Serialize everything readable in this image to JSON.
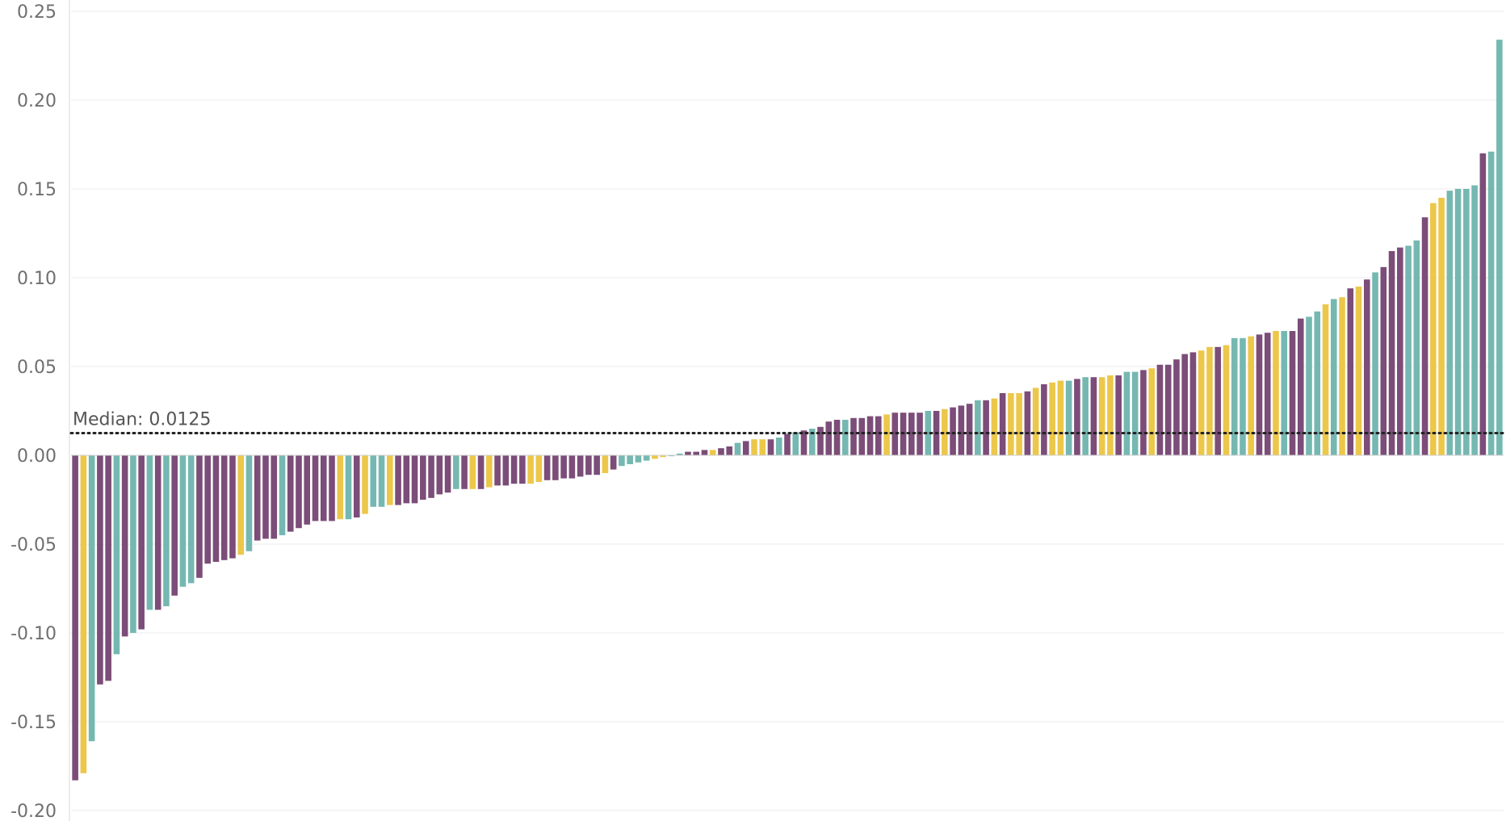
{
  "colors": {
    "purple": "#7b4d78",
    "yellow": "#ecc74a",
    "teal": "#75b8b1",
    "grid": "#ebebeb",
    "axis": "#d9d9d9",
    "median_line": "#222222"
  },
  "chart_data": {
    "type": "bar",
    "title": "",
    "xlabel": "",
    "ylabel": "",
    "ylim": [
      -0.2,
      0.25
    ],
    "y_ticks": [
      "0.25",
      "0.20",
      "0.15",
      "0.10",
      "0.05",
      "0.00",
      "-0.05",
      "-0.10",
      "-0.15",
      "-0.20"
    ],
    "grid": true,
    "reference_line": {
      "value": 0.0125,
      "label": "Median: 0.0125",
      "style": "dotted"
    },
    "bars": [
      {
        "value": -0.183,
        "color": "purple"
      },
      {
        "value": -0.179,
        "color": "yellow"
      },
      {
        "value": -0.161,
        "color": "teal"
      },
      {
        "value": -0.129,
        "color": "purple"
      },
      {
        "value": -0.127,
        "color": "purple"
      },
      {
        "value": -0.112,
        "color": "teal"
      },
      {
        "value": -0.102,
        "color": "purple"
      },
      {
        "value": -0.1,
        "color": "teal"
      },
      {
        "value": -0.098,
        "color": "purple"
      },
      {
        "value": -0.087,
        "color": "teal"
      },
      {
        "value": -0.087,
        "color": "purple"
      },
      {
        "value": -0.085,
        "color": "teal"
      },
      {
        "value": -0.079,
        "color": "purple"
      },
      {
        "value": -0.074,
        "color": "teal"
      },
      {
        "value": -0.072,
        "color": "teal"
      },
      {
        "value": -0.069,
        "color": "purple"
      },
      {
        "value": -0.061,
        "color": "purple"
      },
      {
        "value": -0.06,
        "color": "purple"
      },
      {
        "value": -0.059,
        "color": "purple"
      },
      {
        "value": -0.058,
        "color": "purple"
      },
      {
        "value": -0.056,
        "color": "yellow"
      },
      {
        "value": -0.054,
        "color": "teal"
      },
      {
        "value": -0.048,
        "color": "purple"
      },
      {
        "value": -0.047,
        "color": "purple"
      },
      {
        "value": -0.047,
        "color": "purple"
      },
      {
        "value": -0.045,
        "color": "teal"
      },
      {
        "value": -0.043,
        "color": "purple"
      },
      {
        "value": -0.041,
        "color": "purple"
      },
      {
        "value": -0.039,
        "color": "purple"
      },
      {
        "value": -0.037,
        "color": "purple"
      },
      {
        "value": -0.037,
        "color": "purple"
      },
      {
        "value": -0.037,
        "color": "purple"
      },
      {
        "value": -0.036,
        "color": "yellow"
      },
      {
        "value": -0.036,
        "color": "teal"
      },
      {
        "value": -0.035,
        "color": "purple"
      },
      {
        "value": -0.033,
        "color": "yellow"
      },
      {
        "value": -0.029,
        "color": "teal"
      },
      {
        "value": -0.029,
        "color": "teal"
      },
      {
        "value": -0.028,
        "color": "yellow"
      },
      {
        "value": -0.028,
        "color": "purple"
      },
      {
        "value": -0.027,
        "color": "purple"
      },
      {
        "value": -0.027,
        "color": "purple"
      },
      {
        "value": -0.025,
        "color": "purple"
      },
      {
        "value": -0.024,
        "color": "purple"
      },
      {
        "value": -0.022,
        "color": "purple"
      },
      {
        "value": -0.021,
        "color": "purple"
      },
      {
        "value": -0.019,
        "color": "teal"
      },
      {
        "value": -0.019,
        "color": "purple"
      },
      {
        "value": -0.019,
        "color": "yellow"
      },
      {
        "value": -0.019,
        "color": "purple"
      },
      {
        "value": -0.018,
        "color": "yellow"
      },
      {
        "value": -0.017,
        "color": "purple"
      },
      {
        "value": -0.017,
        "color": "purple"
      },
      {
        "value": -0.016,
        "color": "purple"
      },
      {
        "value": -0.016,
        "color": "purple"
      },
      {
        "value": -0.016,
        "color": "yellow"
      },
      {
        "value": -0.015,
        "color": "yellow"
      },
      {
        "value": -0.014,
        "color": "purple"
      },
      {
        "value": -0.014,
        "color": "purple"
      },
      {
        "value": -0.013,
        "color": "purple"
      },
      {
        "value": -0.013,
        "color": "purple"
      },
      {
        "value": -0.012,
        "color": "purple"
      },
      {
        "value": -0.011,
        "color": "purple"
      },
      {
        "value": -0.011,
        "color": "purple"
      },
      {
        "value": -0.01,
        "color": "yellow"
      },
      {
        "value": -0.008,
        "color": "purple"
      },
      {
        "value": -0.006,
        "color": "teal"
      },
      {
        "value": -0.005,
        "color": "teal"
      },
      {
        "value": -0.004,
        "color": "teal"
      },
      {
        "value": -0.003,
        "color": "teal"
      },
      {
        "value": -0.002,
        "color": "yellow"
      },
      {
        "value": -0.001,
        "color": "yellow"
      },
      {
        "value": -0.0005,
        "color": "teal"
      },
      {
        "value": 0.001,
        "color": "teal"
      },
      {
        "value": 0.002,
        "color": "purple"
      },
      {
        "value": 0.002,
        "color": "purple"
      },
      {
        "value": 0.003,
        "color": "purple"
      },
      {
        "value": 0.003,
        "color": "yellow"
      },
      {
        "value": 0.004,
        "color": "purple"
      },
      {
        "value": 0.005,
        "color": "purple"
      },
      {
        "value": 0.007,
        "color": "teal"
      },
      {
        "value": 0.008,
        "color": "purple"
      },
      {
        "value": 0.009,
        "color": "yellow"
      },
      {
        "value": 0.009,
        "color": "yellow"
      },
      {
        "value": 0.009,
        "color": "purple"
      },
      {
        "value": 0.01,
        "color": "teal"
      },
      {
        "value": 0.012,
        "color": "purple"
      },
      {
        "value": 0.013,
        "color": "teal"
      },
      {
        "value": 0.014,
        "color": "purple"
      },
      {
        "value": 0.015,
        "color": "teal"
      },
      {
        "value": 0.016,
        "color": "purple"
      },
      {
        "value": 0.019,
        "color": "purple"
      },
      {
        "value": 0.02,
        "color": "purple"
      },
      {
        "value": 0.02,
        "color": "teal"
      },
      {
        "value": 0.021,
        "color": "purple"
      },
      {
        "value": 0.021,
        "color": "purple"
      },
      {
        "value": 0.022,
        "color": "purple"
      },
      {
        "value": 0.022,
        "color": "purple"
      },
      {
        "value": 0.023,
        "color": "yellow"
      },
      {
        "value": 0.024,
        "color": "purple"
      },
      {
        "value": 0.024,
        "color": "purple"
      },
      {
        "value": 0.024,
        "color": "purple"
      },
      {
        "value": 0.024,
        "color": "purple"
      },
      {
        "value": 0.025,
        "color": "teal"
      },
      {
        "value": 0.025,
        "color": "purple"
      },
      {
        "value": 0.026,
        "color": "yellow"
      },
      {
        "value": 0.027,
        "color": "purple"
      },
      {
        "value": 0.028,
        "color": "purple"
      },
      {
        "value": 0.029,
        "color": "purple"
      },
      {
        "value": 0.031,
        "color": "teal"
      },
      {
        "value": 0.031,
        "color": "purple"
      },
      {
        "value": 0.032,
        "color": "yellow"
      },
      {
        "value": 0.035,
        "color": "purple"
      },
      {
        "value": 0.035,
        "color": "yellow"
      },
      {
        "value": 0.035,
        "color": "yellow"
      },
      {
        "value": 0.036,
        "color": "purple"
      },
      {
        "value": 0.038,
        "color": "yellow"
      },
      {
        "value": 0.04,
        "color": "purple"
      },
      {
        "value": 0.041,
        "color": "yellow"
      },
      {
        "value": 0.042,
        "color": "yellow"
      },
      {
        "value": 0.042,
        "color": "teal"
      },
      {
        "value": 0.043,
        "color": "purple"
      },
      {
        "value": 0.044,
        "color": "teal"
      },
      {
        "value": 0.044,
        "color": "purple"
      },
      {
        "value": 0.044,
        "color": "yellow"
      },
      {
        "value": 0.045,
        "color": "yellow"
      },
      {
        "value": 0.045,
        "color": "purple"
      },
      {
        "value": 0.047,
        "color": "teal"
      },
      {
        "value": 0.047,
        "color": "teal"
      },
      {
        "value": 0.048,
        "color": "purple"
      },
      {
        "value": 0.049,
        "color": "yellow"
      },
      {
        "value": 0.051,
        "color": "purple"
      },
      {
        "value": 0.051,
        "color": "purple"
      },
      {
        "value": 0.054,
        "color": "purple"
      },
      {
        "value": 0.057,
        "color": "purple"
      },
      {
        "value": 0.058,
        "color": "purple"
      },
      {
        "value": 0.059,
        "color": "yellow"
      },
      {
        "value": 0.061,
        "color": "yellow"
      },
      {
        "value": 0.061,
        "color": "purple"
      },
      {
        "value": 0.062,
        "color": "yellow"
      },
      {
        "value": 0.066,
        "color": "teal"
      },
      {
        "value": 0.066,
        "color": "teal"
      },
      {
        "value": 0.067,
        "color": "yellow"
      },
      {
        "value": 0.068,
        "color": "purple"
      },
      {
        "value": 0.069,
        "color": "purple"
      },
      {
        "value": 0.07,
        "color": "yellow"
      },
      {
        "value": 0.07,
        "color": "teal"
      },
      {
        "value": 0.07,
        "color": "purple"
      },
      {
        "value": 0.077,
        "color": "purple"
      },
      {
        "value": 0.078,
        "color": "teal"
      },
      {
        "value": 0.081,
        "color": "teal"
      },
      {
        "value": 0.085,
        "color": "yellow"
      },
      {
        "value": 0.088,
        "color": "teal"
      },
      {
        "value": 0.089,
        "color": "yellow"
      },
      {
        "value": 0.094,
        "color": "purple"
      },
      {
        "value": 0.095,
        "color": "yellow"
      },
      {
        "value": 0.099,
        "color": "purple"
      },
      {
        "value": 0.103,
        "color": "teal"
      },
      {
        "value": 0.106,
        "color": "purple"
      },
      {
        "value": 0.115,
        "color": "purple"
      },
      {
        "value": 0.117,
        "color": "purple"
      },
      {
        "value": 0.118,
        "color": "teal"
      },
      {
        "value": 0.121,
        "color": "teal"
      },
      {
        "value": 0.134,
        "color": "purple"
      },
      {
        "value": 0.142,
        "color": "yellow"
      },
      {
        "value": 0.145,
        "color": "yellow"
      },
      {
        "value": 0.149,
        "color": "teal"
      },
      {
        "value": 0.15,
        "color": "teal"
      },
      {
        "value": 0.15,
        "color": "teal"
      },
      {
        "value": 0.152,
        "color": "teal"
      },
      {
        "value": 0.17,
        "color": "purple"
      },
      {
        "value": 0.171,
        "color": "teal"
      },
      {
        "value": 0.234,
        "color": "teal"
      }
    ]
  }
}
